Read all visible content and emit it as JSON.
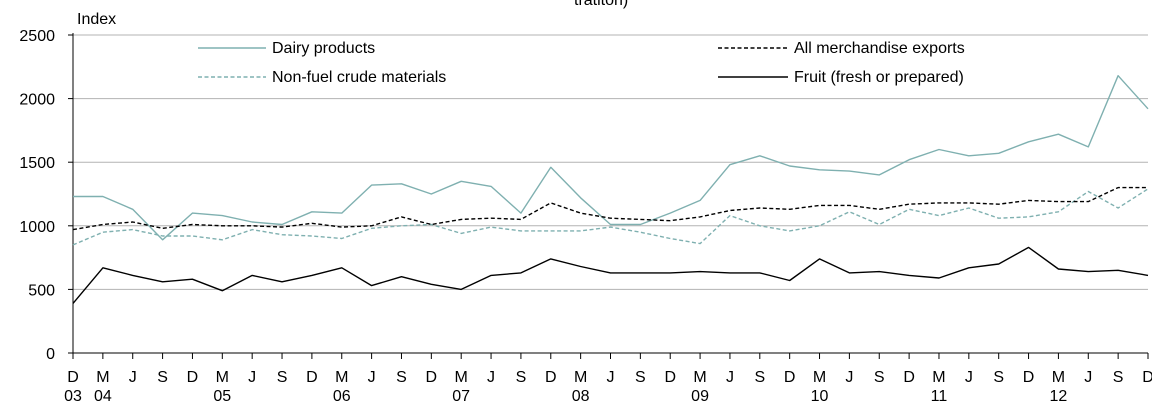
{
  "chart_data": {
    "type": "line",
    "title_fragment": "Index",
    "cut_off_text": "tratitori)",
    "ylabel": "Index",
    "ylim": [
      0,
      2500
    ],
    "yticks": [
      0,
      500,
      1000,
      1500,
      2000,
      2500
    ],
    "grid": true,
    "x_tick_labels": [
      "D",
      "M",
      "J",
      "S",
      "D",
      "M",
      "J",
      "S",
      "D",
      "M",
      "J",
      "S",
      "D",
      "M",
      "J",
      "S",
      "D",
      "M",
      "J",
      "S",
      "D",
      "M",
      "J",
      "S",
      "D",
      "M",
      "J",
      "S",
      "D",
      "M",
      "J",
      "S",
      "D",
      "M",
      "J",
      "S",
      "D"
    ],
    "x_year_labels": [
      {
        "index": 0,
        "label": "03"
      },
      {
        "index": 1,
        "label": "04"
      },
      {
        "index": 5,
        "label": "05"
      },
      {
        "index": 9,
        "label": "06"
      },
      {
        "index": 13,
        "label": "07"
      },
      {
        "index": 17,
        "label": "08"
      },
      {
        "index": 21,
        "label": "09"
      },
      {
        "index": 25,
        "label": "10"
      },
      {
        "index": 29,
        "label": "11"
      },
      {
        "index": 33,
        "label": "12"
      }
    ],
    "legend": [
      {
        "label": "Dairy products",
        "series": 0
      },
      {
        "label": "All merchandise exports",
        "series": 2
      },
      {
        "label": "Non-fuel crude materials",
        "series": 1
      },
      {
        "label": "Fruit (fresh or prepared)",
        "series": 3
      }
    ],
    "series": [
      {
        "name": "Dairy products",
        "color": "#7fb0b0",
        "dash": "solid",
        "values": [
          1230,
          1230,
          1130,
          890,
          1100,
          1080,
          1030,
          1010,
          1110,
          1100,
          1320,
          1330,
          1250,
          1350,
          1310,
          1100,
          1460,
          1220,
          1010,
          1010,
          1100,
          1200,
          1480,
          1550,
          1470,
          1440,
          1430,
          1400,
          1520,
          1600,
          1550,
          1570,
          1660,
          1720,
          1620,
          2180,
          1920
        ]
      },
      {
        "name": "Non-fuel crude materials",
        "color": "#7fb0b0",
        "dash": "dashed",
        "values": [
          850,
          950,
          970,
          920,
          920,
          890,
          970,
          930,
          920,
          900,
          980,
          1000,
          1010,
          940,
          990,
          960,
          960,
          960,
          990,
          950,
          900,
          860,
          1080,
          1000,
          960,
          1000,
          1110,
          1010,
          1130,
          1080,
          1140,
          1060,
          1070,
          1110,
          1270,
          1140,
          1290
        ]
      },
      {
        "name": "All merchandise exports",
        "color": "#000000",
        "dash": "dashed",
        "values": [
          970,
          1010,
          1030,
          980,
          1010,
          1000,
          1000,
          990,
          1020,
          990,
          1000,
          1070,
          1010,
          1050,
          1060,
          1050,
          1180,
          1100,
          1060,
          1050,
          1040,
          1070,
          1120,
          1140,
          1130,
          1160,
          1160,
          1130,
          1170,
          1180,
          1180,
          1170,
          1200,
          1190,
          1190,
          1300,
          1300
        ]
      },
      {
        "name": "Fruit (fresh or prepared)",
        "color": "#000000",
        "dash": "solid",
        "values": [
          390,
          670,
          610,
          560,
          580,
          490,
          610,
          560,
          610,
          670,
          530,
          600,
          540,
          500,
          610,
          630,
          740,
          680,
          630,
          630,
          630,
          640,
          630,
          630,
          570,
          740,
          630,
          640,
          610,
          590,
          670,
          700,
          830,
          660,
          640,
          650,
          610
        ]
      }
    ]
  }
}
